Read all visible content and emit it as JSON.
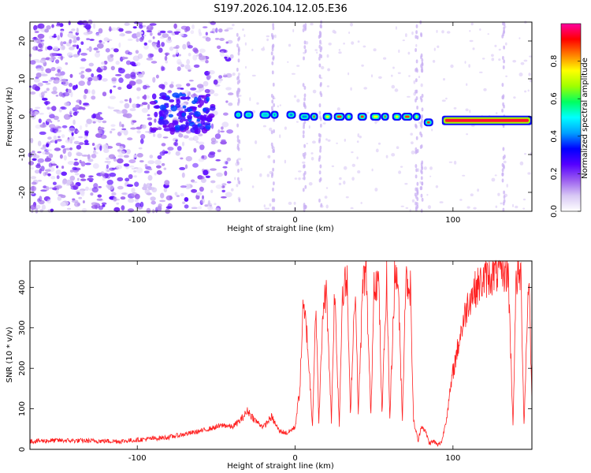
{
  "title": "S197.2026.104.12.05.E36",
  "chart_data": [
    {
      "type": "heatmap",
      "title": "S197.2026.104.12.05.E36",
      "xlabel": "Height of straight line (km)",
      "ylabel": "Frequency (Hz)",
      "xlim": [
        -168,
        150
      ],
      "ylim": [
        -25,
        25
      ],
      "xticks": [
        -100,
        0,
        100
      ],
      "yticks": [
        -20,
        -10,
        0,
        10,
        20
      ],
      "colorbar": {
        "label": "Normalized spectral amplitude",
        "range": [
          0,
          1
        ],
        "ticks": [
          "0.0",
          "0.2",
          "0.4",
          "0.6",
          "0.8"
        ],
        "colors": [
          "#ffffff",
          "#d8c8f4",
          "#9a5cf0",
          "#5500ff",
          "#0000ff",
          "#00a0ff",
          "#00ffff",
          "#00ff60",
          "#a0ff00",
          "#ffff00",
          "#ff8000",
          "#ff0000",
          "#ff00a0"
        ]
      },
      "features": [
        {
          "name": "broadband noise",
          "x_range": [
            -168,
            -40
          ],
          "freq_range": [
            -25,
            25
          ],
          "amplitude": 0.2
        },
        {
          "name": "scattered strong patches",
          "x_range": [
            -90,
            -55
          ],
          "freq_range": [
            -3,
            5
          ],
          "amplitude": 0.35
        },
        {
          "name": "tone segments",
          "x_range": [
            -35,
            90
          ],
          "freq": 0,
          "amplitude": 0.9
        },
        {
          "name": "continuous tone",
          "x_range": [
            93,
            150
          ],
          "freq": -1,
          "amplitude": 1.0
        }
      ]
    },
    {
      "type": "line",
      "xlabel": "Height of straight line (km)",
      "ylabel": "SNR (10 * v/v)",
      "xlim": [
        -168,
        150
      ],
      "ylim": [
        0,
        465
      ],
      "xticks": [
        -100,
        0,
        100
      ],
      "yticks": [
        0,
        100,
        200,
        300,
        400
      ],
      "series": [
        {
          "name": "SNR",
          "color": "#ff2020",
          "x": [
            -168,
            -150,
            -130,
            -110,
            -95,
            -80,
            -60,
            -45,
            -40,
            -35,
            -30,
            -25,
            -20,
            -15,
            -10,
            -5,
            0,
            3,
            5,
            7,
            9,
            11,
            13,
            15,
            18,
            20,
            23,
            25,
            28,
            30,
            33,
            35,
            38,
            40,
            43,
            45,
            48,
            50,
            53,
            55,
            58,
            60,
            63,
            65,
            68,
            70,
            73,
            75,
            78,
            80,
            83,
            85,
            88,
            90,
            93,
            96,
            100,
            105,
            110,
            115,
            120,
            125,
            130,
            135,
            138,
            140,
            143,
            145,
            148,
            150
          ],
          "values": [
            20,
            22,
            21,
            20,
            25,
            30,
            45,
            60,
            55,
            70,
            95,
            70,
            55,
            80,
            45,
            40,
            55,
            150,
            340,
            310,
            190,
            60,
            360,
            70,
            370,
            380,
            70,
            395,
            60,
            400,
            410,
            85,
            405,
            90,
            420,
            430,
            80,
            420,
            410,
            85,
            425,
            75,
            420,
            430,
            75,
            420,
            400,
            70,
            20,
            60,
            40,
            15,
            20,
            10,
            20,
            80,
            190,
            290,
            370,
            400,
            420,
            430,
            440,
            435,
            60,
            420,
            430,
            60,
            440,
            120
          ]
        }
      ]
    }
  ]
}
